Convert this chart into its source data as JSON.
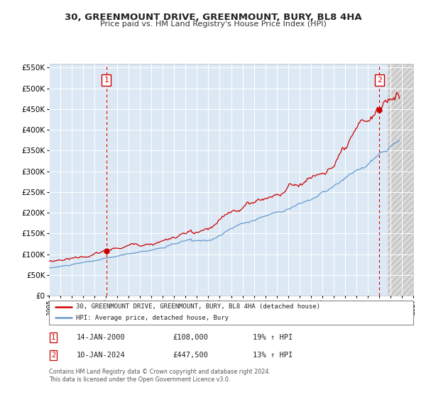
{
  "title": "30, GREENMOUNT DRIVE, GREENMOUNT, BURY, BL8 4HA",
  "subtitle": "Price paid vs. HM Land Registry's House Price Index (HPI)",
  "legend_line1": "30, GREENMOUNT DRIVE, GREENMOUNT, BURY, BL8 4HA (detached house)",
  "legend_line2": "HPI: Average price, detached house, Bury",
  "sale1_label": "1",
  "sale1_date": "14-JAN-2000",
  "sale1_price": "£108,000",
  "sale1_hpi": "19% ↑ HPI",
  "sale2_label": "2",
  "sale2_date": "10-JAN-2024",
  "sale2_price": "£447,500",
  "sale2_hpi": "13% ↑ HPI",
  "footer": "Contains HM Land Registry data © Crown copyright and database right 2024.\nThis data is licensed under the Open Government Licence v3.0.",
  "sale1_x": 2000.04,
  "sale1_y": 108000,
  "sale2_x": 2024.03,
  "sale2_y": 447500,
  "xmin": 1995.0,
  "xmax": 2027.0,
  "ymin": 0,
  "ymax": 560000,
  "yticks": [
    0,
    50000,
    100000,
    150000,
    200000,
    250000,
    300000,
    350000,
    400000,
    450000,
    500000,
    550000
  ],
  "xticks": [
    1995,
    1996,
    1997,
    1998,
    1999,
    2000,
    2001,
    2002,
    2003,
    2004,
    2005,
    2006,
    2007,
    2008,
    2009,
    2010,
    2011,
    2012,
    2013,
    2014,
    2015,
    2016,
    2017,
    2018,
    2019,
    2020,
    2021,
    2022,
    2023,
    2024,
    2025,
    2026,
    2027
  ],
  "hpi_color": "#6699cc",
  "property_color": "#cc0000",
  "dot_color": "#cc0000",
  "bg_color": "#dce9f5",
  "grid_color": "#ffffff",
  "vline_color": "#cc0000",
  "hatch_start": 2024.75,
  "hatch_bg": "#e0e0e0",
  "hatch_edge": "#aaaaaa"
}
